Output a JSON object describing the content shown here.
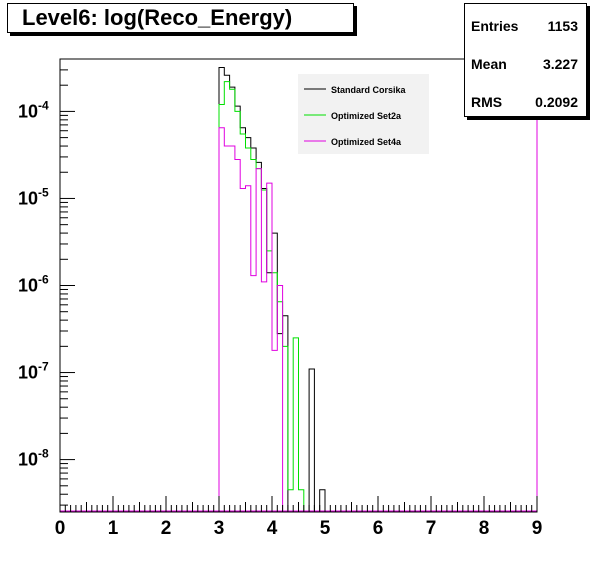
{
  "title": "Level6:  log(Reco_Energy)",
  "stats": [
    {
      "label": "Entries",
      "value": "1153"
    },
    {
      "label": "Mean",
      "value": "3.227"
    },
    {
      "label": "RMS",
      "value": "0.2092"
    }
  ],
  "legend": [
    {
      "name": "Standard Corsika",
      "color": "#000000"
    },
    {
      "name": "Optimized Set2a",
      "color": "#00e000"
    },
    {
      "name": "Optimized Set4a",
      "color": "#e000e0"
    }
  ],
  "chart_data": {
    "type": "histogram",
    "title": "Level6:  log(Reco_Energy)",
    "xlabel": "",
    "ylabel": "",
    "xlim": [
      0,
      9
    ],
    "ylim": [
      2.5e-09,
      0.0004
    ],
    "y_scale": "log",
    "bin_width": 0.1,
    "x_ticks": [
      "0",
      "1",
      "2",
      "3",
      "4",
      "5",
      "6",
      "7",
      "8",
      "9"
    ],
    "y_tick_labels": [
      {
        "base": "10",
        "exp": "-8",
        "value": 1e-08
      },
      {
        "base": "10",
        "exp": "-7",
        "value": 1e-07
      },
      {
        "base": "10",
        "exp": "-6",
        "value": 1e-06
      },
      {
        "base": "10",
        "exp": "-5",
        "value": 1e-05
      },
      {
        "base": "10",
        "exp": "-4",
        "value": 0.0001
      }
    ],
    "series": [
      {
        "name": "Standard Corsika",
        "color": "#000000",
        "bins": [
          {
            "x": 3.0,
            "y": 0.00032
          },
          {
            "x": 3.1,
            "y": 0.00026
          },
          {
            "x": 3.2,
            "y": 0.00019
          },
          {
            "x": 3.3,
            "y": 0.000115
          },
          {
            "x": 3.4,
            "y": 6.5e-05
          },
          {
            "x": 3.5,
            "y": 5e-05
          },
          {
            "x": 3.6,
            "y": 3.8e-05
          },
          {
            "x": 3.7,
            "y": 2.6e-05
          },
          {
            "x": 3.8,
            "y": 1.3e-05
          },
          {
            "x": 3.9,
            "y": 1.4e-06
          },
          {
            "x": 4.0,
            "y": 4e-06
          },
          {
            "x": 4.1,
            "y": 2.8e-07
          },
          {
            "x": 4.2,
            "y": 4.5e-07
          },
          {
            "x": 4.3,
            "y": 2.5e-09
          },
          {
            "x": 4.4,
            "y": 2.5e-09
          },
          {
            "x": 4.5,
            "y": 2.5e-09
          },
          {
            "x": 4.6,
            "y": 2.5e-09
          },
          {
            "x": 4.7,
            "y": 1.1e-07
          },
          {
            "x": 4.8,
            "y": 2.5e-09
          },
          {
            "x": 4.9,
            "y": 4.5e-09
          }
        ]
      },
      {
        "name": "Optimized Set2a",
        "color": "#00e000",
        "bins": [
          {
            "x": 3.0,
            "y": 0.00012
          },
          {
            "x": 3.1,
            "y": 0.00022
          },
          {
            "x": 3.2,
            "y": 0.00018
          },
          {
            "x": 3.3,
            "y": 0.0001
          },
          {
            "x": 3.4,
            "y": 5.5e-05
          },
          {
            "x": 3.5,
            "y": 3.8e-05
          },
          {
            "x": 3.6,
            "y": 2.8e-05
          },
          {
            "x": 3.7,
            "y": 2.2e-05
          },
          {
            "x": 3.8,
            "y": 1.25e-05
          },
          {
            "x": 3.9,
            "y": 2.5e-06
          },
          {
            "x": 4.0,
            "y": 1.4e-06
          },
          {
            "x": 4.1,
            "y": 6.5e-07
          },
          {
            "x": 4.2,
            "y": 2e-07
          },
          {
            "x": 4.3,
            "y": 4.5e-09
          },
          {
            "x": 4.4,
            "y": 2.5e-07
          },
          {
            "x": 4.5,
            "y": 4.5e-09
          }
        ]
      },
      {
        "name": "Optimized Set4a",
        "color": "#e000e0",
        "bins": [
          {
            "x": 3.0,
            "y": 6.5e-05
          },
          {
            "x": 3.1,
            "y": 4e-05
          },
          {
            "x": 3.2,
            "y": 4e-05
          },
          {
            "x": 3.3,
            "y": 2.8e-05
          },
          {
            "x": 3.4,
            "y": 1.3e-05
          },
          {
            "x": 3.5,
            "y": 1.4e-05
          },
          {
            "x": 3.6,
            "y": 1.3e-06
          },
          {
            "x": 3.7,
            "y": 2.2e-05
          },
          {
            "x": 3.8,
            "y": 1.1e-06
          },
          {
            "x": 3.9,
            "y": 1.5e-05
          },
          {
            "x": 4.0,
            "y": 1.8e-07
          },
          {
            "x": 4.1,
            "y": 1e-06
          }
        ]
      }
    ]
  }
}
